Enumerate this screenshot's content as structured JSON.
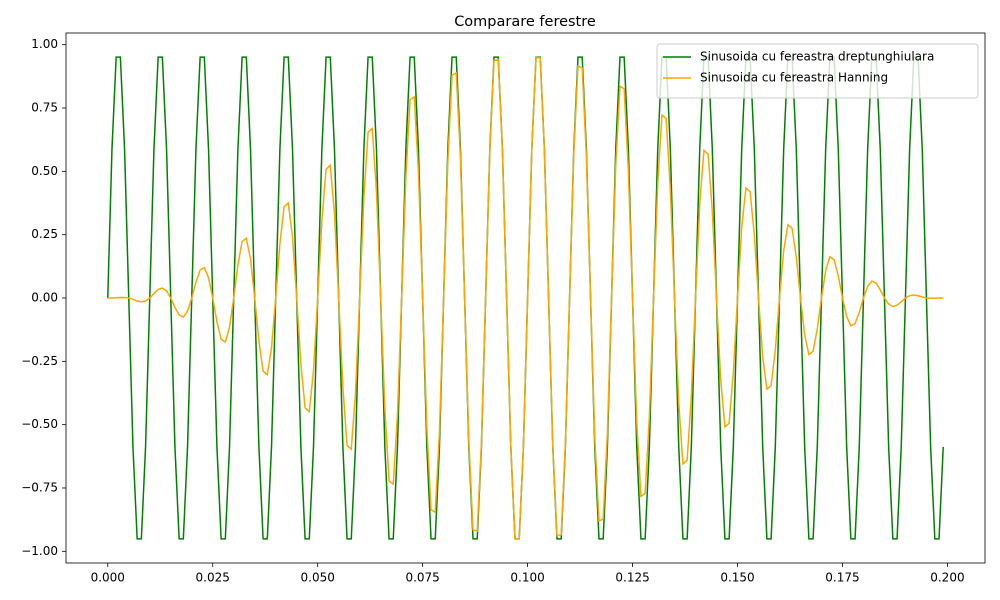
{
  "chart_data": {
    "type": "line",
    "title": "Comparare ferestre",
    "x": [
      0,
      0.001,
      0.002,
      0.003,
      0.004,
      0.005,
      0.006,
      0.007,
      0.008,
      0.009,
      0.01,
      0.011,
      0.012,
      0.013,
      0.014,
      0.015,
      0.016,
      0.017,
      0.018,
      0.019,
      0.02,
      0.021,
      0.022,
      0.023,
      0.024,
      0.025,
      0.026,
      0.027,
      0.028,
      0.029,
      0.03,
      0.031,
      0.032,
      0.033,
      0.034,
      0.035,
      0.036,
      0.037,
      0.038,
      0.039,
      0.04,
      0.041,
      0.042,
      0.043,
      0.044,
      0.045,
      0.046,
      0.047,
      0.048,
      0.049,
      0.05,
      0.051,
      0.052,
      0.053,
      0.054,
      0.055,
      0.056,
      0.057,
      0.058,
      0.059,
      0.06,
      0.061,
      0.062,
      0.063,
      0.064,
      0.065,
      0.066,
      0.067,
      0.068,
      0.069,
      0.07,
      0.071,
      0.072,
      0.073,
      0.074,
      0.075,
      0.076,
      0.077,
      0.078,
      0.079,
      0.08,
      0.081,
      0.082,
      0.083,
      0.084,
      0.085,
      0.086,
      0.087,
      0.088,
      0.089,
      0.09,
      0.091,
      0.092,
      0.093,
      0.094,
      0.095,
      0.096,
      0.097,
      0.098,
      0.099,
      0.1,
      0.101,
      0.102,
      0.103,
      0.104,
      0.105,
      0.106,
      0.107,
      0.108,
      0.109,
      0.11,
      0.111,
      0.112,
      0.113,
      0.114,
      0.115,
      0.116,
      0.117,
      0.118,
      0.119,
      0.12,
      0.121,
      0.122,
      0.123,
      0.124,
      0.125,
      0.126,
      0.127,
      0.128,
      0.129,
      0.13,
      0.131,
      0.132,
      0.133,
      0.134,
      0.135,
      0.136,
      0.137,
      0.138,
      0.139,
      0.14,
      0.141,
      0.142,
      0.143,
      0.144,
      0.145,
      0.146,
      0.147,
      0.148,
      0.149,
      0.15,
      0.151,
      0.152,
      0.153,
      0.154,
      0.155,
      0.156,
      0.157,
      0.158,
      0.159,
      0.16,
      0.161,
      0.162,
      0.163,
      0.164,
      0.165,
      0.166,
      0.167,
      0.168,
      0.169,
      0.17,
      0.171,
      0.172,
      0.173,
      0.174,
      0.175,
      0.176,
      0.177,
      0.178,
      0.179,
      0.18,
      0.181,
      0.182,
      0.183,
      0.184,
      0.185,
      0.186,
      0.187,
      0.188,
      0.189,
      0.19,
      0.191,
      0.192,
      0.193,
      0.194,
      0.195,
      0.196,
      0.197,
      0.198,
      0.199
    ],
    "series": [
      {
        "name": "Sinusoida cu fereastra dreptunghiulara",
        "color": "#008000",
        "values": [
          0,
          0.588,
          0.951,
          0.951,
          0.588,
          0,
          -0.588,
          -0.951,
          -0.951,
          -0.588,
          0,
          0.588,
          0.951,
          0.951,
          0.588,
          0,
          -0.588,
          -0.951,
          -0.951,
          -0.588,
          0,
          0.588,
          0.951,
          0.951,
          0.588,
          0,
          -0.588,
          -0.951,
          -0.951,
          -0.588,
          0,
          0.588,
          0.951,
          0.951,
          0.588,
          0,
          -0.588,
          -0.951,
          -0.951,
          -0.588,
          0,
          0.588,
          0.951,
          0.951,
          0.588,
          0,
          -0.588,
          -0.951,
          -0.951,
          -0.588,
          0,
          0.588,
          0.951,
          0.951,
          0.588,
          0,
          -0.588,
          -0.951,
          -0.951,
          -0.588,
          0,
          0.588,
          0.951,
          0.951,
          0.588,
          0,
          -0.588,
          -0.951,
          -0.951,
          -0.588,
          0,
          0.588,
          0.951,
          0.951,
          0.588,
          0,
          -0.588,
          -0.951,
          -0.951,
          -0.588,
          0,
          0.588,
          0.951,
          0.951,
          0.588,
          0,
          -0.588,
          -0.951,
          -0.951,
          -0.588,
          0,
          0.588,
          0.951,
          0.951,
          0.588,
          0,
          -0.588,
          -0.951,
          -0.951,
          -0.588,
          0,
          0.588,
          0.951,
          0.951,
          0.588,
          0,
          -0.588,
          -0.951,
          -0.951,
          -0.588,
          0,
          0.588,
          0.951,
          0.951,
          0.588,
          0,
          -0.588,
          -0.951,
          -0.951,
          -0.588,
          0,
          0.588,
          0.951,
          0.951,
          0.588,
          0,
          -0.588,
          -0.951,
          -0.951,
          -0.588,
          0,
          0.588,
          0.951,
          0.951,
          0.588,
          0,
          -0.588,
          -0.951,
          -0.951,
          -0.588,
          0,
          0.588,
          0.951,
          0.951,
          0.588,
          0,
          -0.588,
          -0.951,
          -0.951,
          -0.588,
          0,
          0.588,
          0.951,
          0.951,
          0.588,
          0,
          -0.588,
          -0.951,
          -0.951,
          -0.588,
          0,
          0.588,
          0.951,
          0.951,
          0.588,
          0,
          -0.588,
          -0.951,
          -0.951,
          -0.588,
          0,
          0.588,
          0.951,
          0.951,
          0.588,
          0,
          -0.588,
          -0.951,
          -0.951,
          -0.588,
          0,
          0.588,
          0.951,
          0.951,
          0.588,
          0,
          -0.588,
          -0.951,
          -0.951,
          -0.588,
          0,
          0.588,
          0.951,
          0.951,
          0.588,
          0,
          -0.588,
          -0.951,
          -0.951,
          -0.588
        ]
      },
      {
        "name": "Sinusoida cu fereastra Hanning",
        "color": "#ffa500",
        "values": [
          0,
          0.0001,
          0.001,
          0.002,
          0.002,
          0,
          -0.005,
          -0.012,
          -0.015,
          -0.012,
          0,
          0.018,
          0.034,
          0.039,
          0.028,
          0,
          -0.037,
          -0.067,
          -0.075,
          -0.051,
          0,
          0.062,
          0.11,
          0.12,
          0.08,
          0,
          -0.094,
          -0.163,
          -0.174,
          -0.115,
          0,
          0.13,
          0.223,
          0.236,
          0.154,
          0,
          -0.17,
          -0.289,
          -0.303,
          -0.196,
          0,
          0.214,
          0.36,
          0.375,
          0.241,
          0,
          -0.259,
          -0.434,
          -0.449,
          -0.287,
          0,
          0.305,
          0.509,
          0.524,
          0.333,
          0,
          -0.351,
          -0.583,
          -0.597,
          -0.378,
          0,
          0.396,
          0.655,
          0.669,
          0.422,
          0,
          -0.438,
          -0.722,
          -0.735,
          -0.462,
          0,
          0.477,
          0.783,
          0.794,
          0.498,
          0,
          -0.511,
          -0.836,
          -0.846,
          -0.528,
          0,
          0.539,
          0.88,
          0.888,
          0.553,
          0,
          -0.562,
          -0.915,
          -0.92,
          -0.572,
          0,
          0.577,
          0.938,
          0.941,
          0.583,
          0,
          -0.586,
          -0.95,
          -0.951,
          -0.588,
          0,
          0.588,
          0.95,
          0.948,
          0.585,
          0,
          -0.582,
          -0.938,
          -0.934,
          -0.575,
          0,
          0.569,
          0.915,
          0.909,
          0.558,
          0,
          -0.549,
          -0.88,
          -0.872,
          -0.534,
          0,
          0.523,
          0.836,
          0.826,
          0.504,
          0,
          -0.491,
          -0.783,
          -0.771,
          -0.469,
          0,
          0.454,
          0.722,
          0.709,
          0.43,
          0,
          -0.413,
          -0.655,
          -0.641,
          -0.387,
          0,
          0.369,
          0.583,
          0.568,
          0.342,
          0,
          -0.324,
          -0.509,
          -0.494,
          -0.296,
          0,
          0.278,
          0.434,
          0.419,
          0.25,
          0,
          -0.232,
          -0.36,
          -0.346,
          -0.205,
          0,
          0.187,
          0.289,
          0.275,
          0.162,
          0,
          -0.146,
          -0.223,
          -0.21,
          -0.122,
          0,
          0.108,
          0.163,
          0.151,
          0.087,
          0,
          -0.074,
          -0.11,
          -0.101,
          -0.057,
          0,
          0.046,
          0.067,
          0.059,
          0.032,
          0,
          -0.024,
          -0.034,
          -0.028,
          -0.015,
          0,
          0.009,
          0.012,
          0.009,
          0.004,
          0,
          -0.001,
          -0.001,
          -0.0002,
          0
        ]
      }
    ],
    "xlim": [
      -0.00995,
      0.20895
    ],
    "xticks": [
      {
        "value": 0,
        "label": "0.000"
      },
      {
        "value": 0.025,
        "label": "0.025"
      },
      {
        "value": 0.05,
        "label": "0.050"
      },
      {
        "value": 0.075,
        "label": "0.075"
      },
      {
        "value": 0.1,
        "label": "0.100"
      },
      {
        "value": 0.125,
        "label": "0.125"
      },
      {
        "value": 0.15,
        "label": "0.150"
      },
      {
        "value": 0.175,
        "label": "0.175"
      },
      {
        "value": 0.2,
        "label": "0.200"
      }
    ],
    "ylim": [
      -1.0461,
      1.0461
    ],
    "yticks": [
      {
        "value": -1,
        "label": "−1.00"
      },
      {
        "value": -0.75,
        "label": "−0.75"
      },
      {
        "value": -0.5,
        "label": "−0.50"
      },
      {
        "value": -0.25,
        "label": "−0.25"
      },
      {
        "value": 0,
        "label": "0.00"
      },
      {
        "value": 0.25,
        "label": "0.25"
      },
      {
        "value": 0.5,
        "label": "0.50"
      },
      {
        "value": 0.75,
        "label": "0.75"
      },
      {
        "value": 1,
        "label": "1.00"
      }
    ],
    "grid": false,
    "legend": "upper right"
  }
}
